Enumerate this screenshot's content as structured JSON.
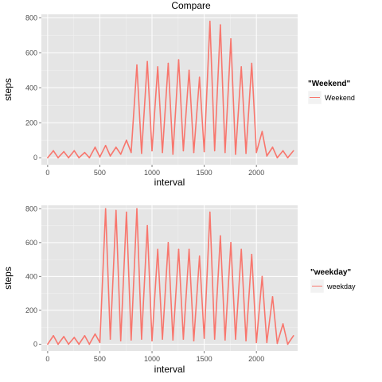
{
  "title": "Compare",
  "chart_data": [
    {
      "type": "line",
      "xlabel": "interval",
      "ylabel": "steps",
      "xlim": [
        -60,
        2395
      ],
      "ylim": [
        -40,
        820
      ],
      "x_ticks": [
        0,
        500,
        1000,
        1500,
        2000
      ],
      "y_ticks": [
        0,
        200,
        400,
        600,
        800
      ],
      "grid": true,
      "legend": {
        "title": "\"Weekend\"",
        "position": "right",
        "entries": [
          "Weekend"
        ]
      },
      "series": [
        {
          "name": "Weekend",
          "color": "#F8766D",
          "x": [
            0,
            55,
            100,
            155,
            200,
            255,
            300,
            355,
            400,
            455,
            500,
            555,
            600,
            655,
            700,
            755,
            800,
            855,
            900,
            955,
            1000,
            1055,
            1100,
            1155,
            1200,
            1255,
            1300,
            1355,
            1400,
            1455,
            1500,
            1555,
            1600,
            1655,
            1700,
            1755,
            1800,
            1855,
            1900,
            1955,
            2000,
            2055,
            2100,
            2155,
            2200,
            2255,
            2300,
            2355
          ],
          "values": [
            0,
            40,
            0,
            35,
            0,
            40,
            0,
            30,
            0,
            60,
            5,
            70,
            10,
            60,
            20,
            100,
            30,
            530,
            25,
            550,
            40,
            520,
            30,
            540,
            20,
            560,
            40,
            500,
            30,
            460,
            35,
            780,
            40,
            760,
            30,
            680,
            20,
            520,
            25,
            540,
            30,
            150,
            10,
            60,
            0,
            40,
            0,
            40
          ]
        }
      ]
    },
    {
      "type": "line",
      "xlabel": "interval",
      "ylabel": "steps",
      "xlim": [
        -60,
        2395
      ],
      "ylim": [
        -40,
        820
      ],
      "x_ticks": [
        0,
        500,
        1000,
        1500,
        2000
      ],
      "y_ticks": [
        0,
        200,
        400,
        600,
        800
      ],
      "grid": true,
      "legend": {
        "title": "\"weekday\"",
        "position": "right",
        "entries": [
          "weekday"
        ]
      },
      "series": [
        {
          "name": "weekday",
          "color": "#F8766D",
          "x": [
            0,
            55,
            100,
            155,
            200,
            255,
            300,
            355,
            400,
            455,
            500,
            555,
            600,
            655,
            700,
            755,
            800,
            855,
            900,
            955,
            1000,
            1055,
            1100,
            1155,
            1200,
            1255,
            1300,
            1355,
            1400,
            1455,
            1500,
            1555,
            1600,
            1655,
            1700,
            1755,
            1800,
            1855,
            1900,
            1955,
            2000,
            2055,
            2100,
            2155,
            2200,
            2255,
            2300,
            2355
          ],
          "values": [
            0,
            50,
            0,
            45,
            0,
            40,
            0,
            50,
            0,
            60,
            10,
            800,
            30,
            790,
            20,
            780,
            25,
            800,
            30,
            700,
            20,
            560,
            30,
            600,
            25,
            560,
            30,
            560,
            20,
            520,
            35,
            780,
            30,
            640,
            25,
            600,
            30,
            560,
            20,
            530,
            10,
            400,
            10,
            280,
            5,
            120,
            0,
            50
          ]
        }
      ]
    }
  ]
}
